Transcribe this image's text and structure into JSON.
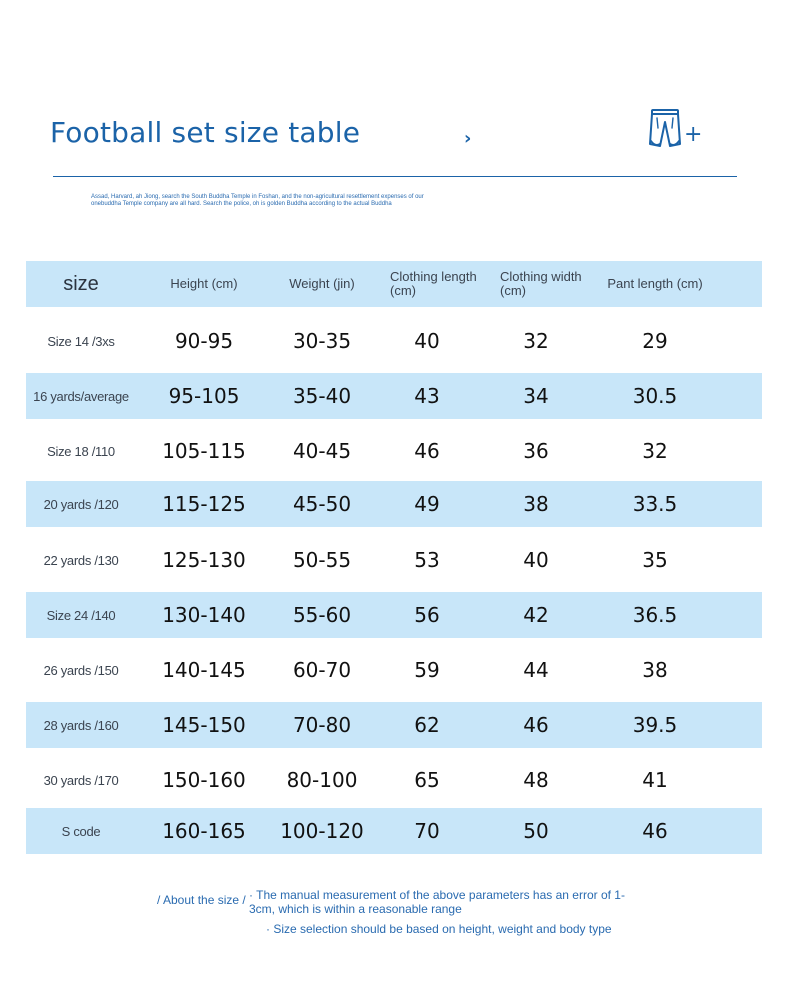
{
  "header": {
    "title": "Football set size table",
    "chevron": "›",
    "plus": "+",
    "note": "Assad, Harvard, ah Jiong, search the South Buddha Temple in Foshan, and the non-agricultural resettlement expenses of our onebuddha Temple company are all hard. Search the police, oh is golden Buddha according to the actual Buddha"
  },
  "table": {
    "columns": [
      "size",
      "Height (cm)",
      "Weight (jin)",
      "Clothing length (cm)",
      "Clothing width (cm)",
      "Pant length (cm)"
    ],
    "rows": [
      [
        "Size 14 /3xs",
        "90-95",
        "30-35",
        "40",
        "32",
        "29"
      ],
      [
        "16 yards/average",
        "95-105",
        "35-40",
        "43",
        "34",
        "30.5"
      ],
      [
        "Size 18 /110",
        "105-115",
        "40-45",
        "46",
        "36",
        "32"
      ],
      [
        "20 yards /120",
        "115-125",
        "45-50",
        "49",
        "38",
        "33.5"
      ],
      [
        "22 yards /130",
        "125-130",
        "50-55",
        "53",
        "40",
        "35"
      ],
      [
        "Size 24 /140",
        "130-140",
        "55-60",
        "56",
        "42",
        "36.5"
      ],
      [
        "26 yards /150",
        "140-145",
        "60-70",
        "59",
        "44",
        "38"
      ],
      [
        "28 yards /160",
        "145-150",
        "70-80",
        "62",
        "46",
        "39.5"
      ],
      [
        "30 yards /170",
        "150-160",
        "80-100",
        "65",
        "48",
        "41"
      ],
      [
        "S code",
        "160-165",
        "100-120",
        "70",
        "50",
        "46"
      ]
    ]
  },
  "footer": {
    "about_label": "/ About the size /",
    "line1": "· The manual measurement of the above parameters has an error of 1-3cm, which is within a reasonable range",
    "line2": "· Size selection should be based on height, weight and body type"
  },
  "colors": {
    "accent": "#1b63a8",
    "row_band": "#c8e6f9"
  }
}
